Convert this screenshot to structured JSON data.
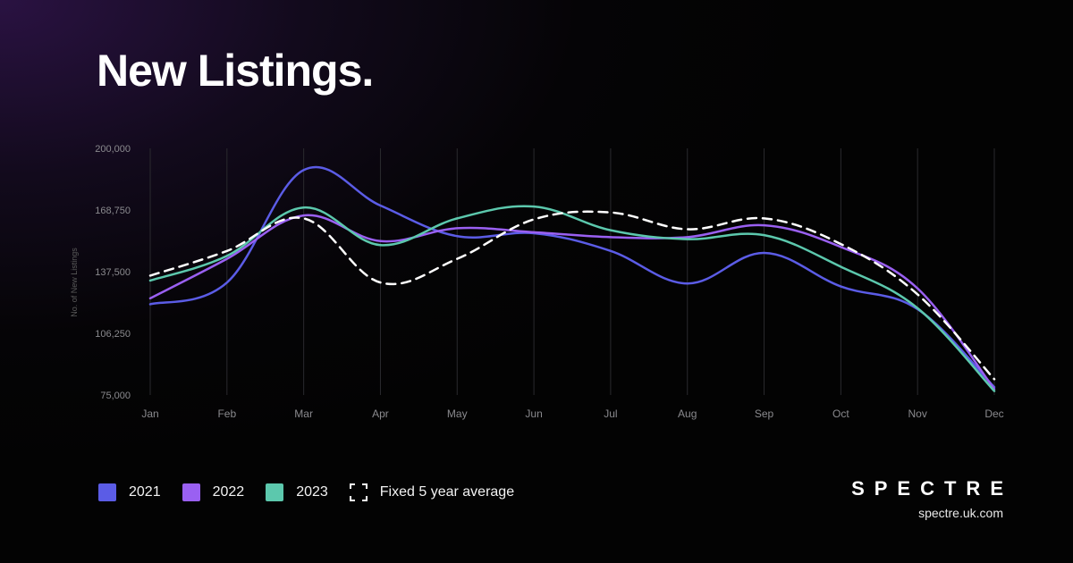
{
  "title": "New Listings.",
  "colors": {
    "2021": "#5b5ce6",
    "2022": "#9a60f2",
    "2023": "#5cc8ad",
    "average": "#ffffff"
  },
  "legend": [
    {
      "label": "2021",
      "color": "#5b5ce6",
      "style": "solid"
    },
    {
      "label": "2022",
      "color": "#9a60f2",
      "style": "solid"
    },
    {
      "label": "2023",
      "color": "#5cc8ad",
      "style": "solid"
    },
    {
      "label": "Fixed 5 year average",
      "color": "#ffffff",
      "style": "dashed"
    }
  ],
  "brand": {
    "name": "SPECTRE",
    "url": "spectre.uk.com"
  },
  "chart_data": {
    "type": "line",
    "title": "New Listings.",
    "xlabel": "",
    "ylabel": "No. of New Listings",
    "categories": [
      "Jan",
      "Feb",
      "Mar",
      "Apr",
      "May",
      "Jun",
      "Jul",
      "Aug",
      "Sep",
      "Oct",
      "Nov",
      "Dec"
    ],
    "yticks": [
      "200,000",
      "168,750",
      "137,500",
      "106,250",
      "75,000"
    ],
    "ylim": [
      75000,
      200000
    ],
    "grid": "vertical",
    "series": [
      {
        "name": "2021",
        "values": [
          121000,
          132000,
          189000,
          171000,
          155500,
          157000,
          148000,
          131500,
          147000,
          130000,
          118500,
          79000
        ]
      },
      {
        "name": "2022",
        "values": [
          124000,
          144000,
          166000,
          153000,
          159500,
          157500,
          155000,
          155000,
          161000,
          150000,
          129000,
          78000
        ]
      },
      {
        "name": "2023",
        "values": [
          133000,
          145500,
          170000,
          151000,
          164500,
          170500,
          158500,
          154000,
          156000,
          140000,
          119000,
          77000
        ]
      },
      {
        "name": "Fixed 5 year average",
        "values": [
          135500,
          148000,
          164500,
          132000,
          144000,
          164000,
          167500,
          159000,
          164500,
          151500,
          126000,
          83000
        ]
      }
    ]
  }
}
